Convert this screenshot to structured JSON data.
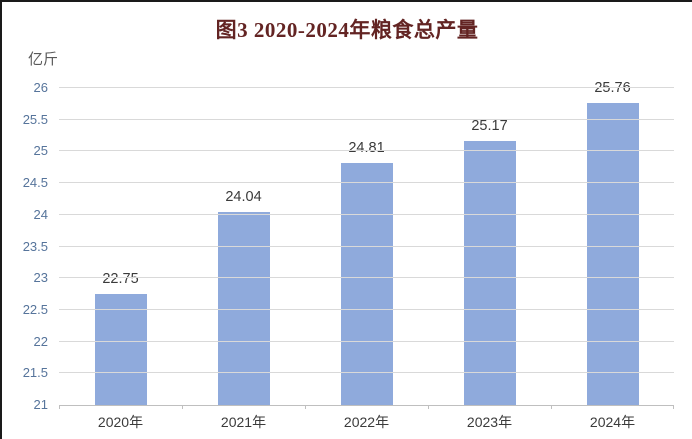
{
  "chart_data": {
    "type": "bar",
    "title": "图3  2020-2024年粮食总产量",
    "unit_label": "亿斤",
    "categories": [
      "2020年",
      "2021年",
      "2022年",
      "2023年",
      "2024年"
    ],
    "values": [
      22.75,
      24.04,
      24.81,
      25.17,
      25.76
    ],
    "data_labels": [
      "22.75",
      "24.04",
      "24.81",
      "25.17",
      "25.76"
    ],
    "ylim": [
      21,
      26
    ],
    "ytick_step": 0.5,
    "ytick_labels": [
      "21",
      "21.5",
      "22",
      "22.5",
      "23",
      "23.5",
      "24",
      "24.5",
      "25",
      "25.5",
      "26"
    ],
    "grid": true,
    "legend": "none",
    "colors": {
      "bar_fill": "#8FAADC",
      "gridline": "#D9D9D9",
      "axis_line": "#BFBFBF",
      "title_text": "#632423",
      "y_tick_text": "#56749B",
      "x_tick_text": "#3B3B3B",
      "data_label_text": "#3A3A3A",
      "unit_label_text": "#595959"
    }
  }
}
